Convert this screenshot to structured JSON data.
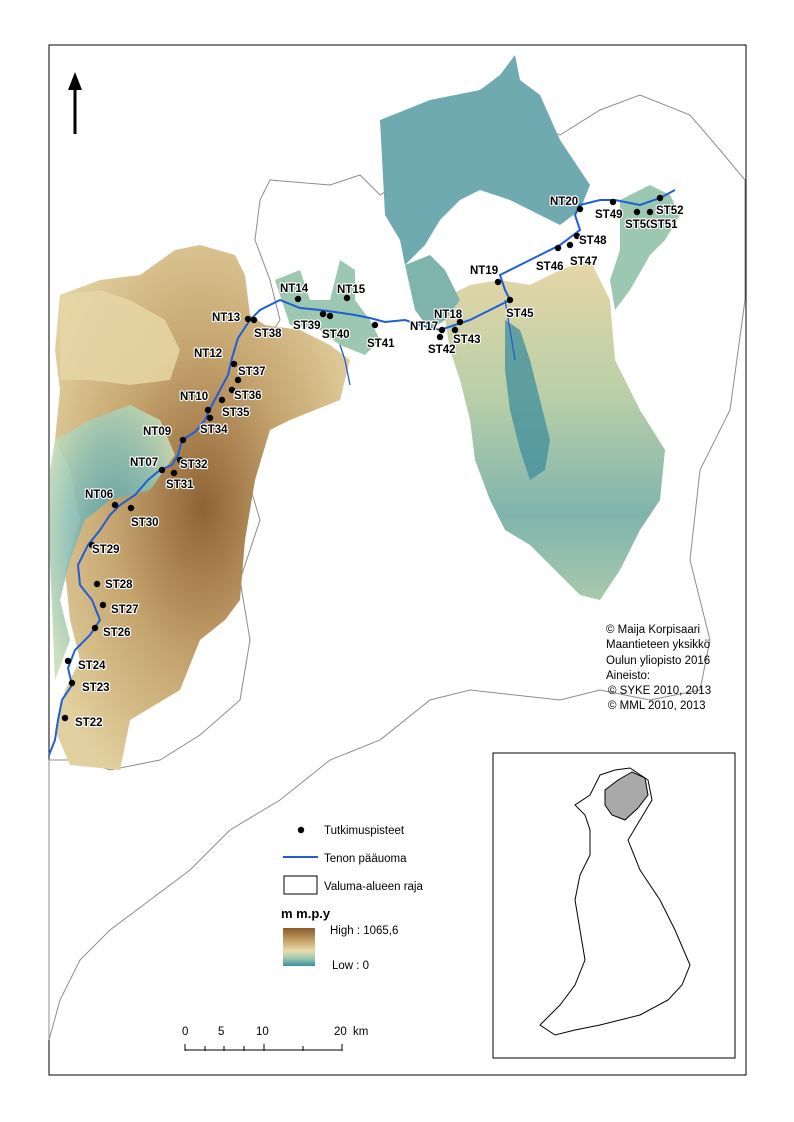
{
  "credits": [
    "© Maija Korpisaari",
    "Maantieteen yksikkö",
    "Oulun yliopisto 2016",
    "Aineisto:",
    "© SYKE 2010, 2013",
    "© MML 2010, 2013"
  ],
  "legend": {
    "points_label": "Tutkimuspisteet",
    "river_label": "Tenon pääuoma",
    "boundary_label": "Valuma-alueen raja",
    "elevation_title": "m m.p.y",
    "high_label": "High : 1065,6",
    "low_label": "Low :  0"
  },
  "scale_bar": {
    "ticks": [
      "0",
      "5",
      "10",
      "20"
    ],
    "unit": "km"
  },
  "colors": {
    "river": "#1f5fd6",
    "high": "#8a5a2b",
    "mid": "#e6d2a0",
    "low": "#3a8fa0",
    "inset_highlight": "#a9a9a9"
  },
  "icons": [
    "north-arrow-icon"
  ],
  "points": [
    "NT20",
    "ST49",
    "ST50",
    "ST51",
    "ST52",
    "ST48",
    "ST47",
    "ST46",
    "NT19",
    "ST45",
    "NT18",
    "NT17",
    "ST42",
    "ST43",
    "ST41",
    "ST40",
    "NT15",
    "ST39",
    "NT14",
    "ST38",
    "NT13",
    "NT12",
    "ST37",
    "ST36",
    "NT10",
    "ST35",
    "ST34",
    "NT09",
    "NT07",
    "ST32",
    "ST31",
    "NT06",
    "ST30",
    "ST29",
    "ST28",
    "ST27",
    "ST26",
    "ST24",
    "ST23",
    "ST22"
  ]
}
